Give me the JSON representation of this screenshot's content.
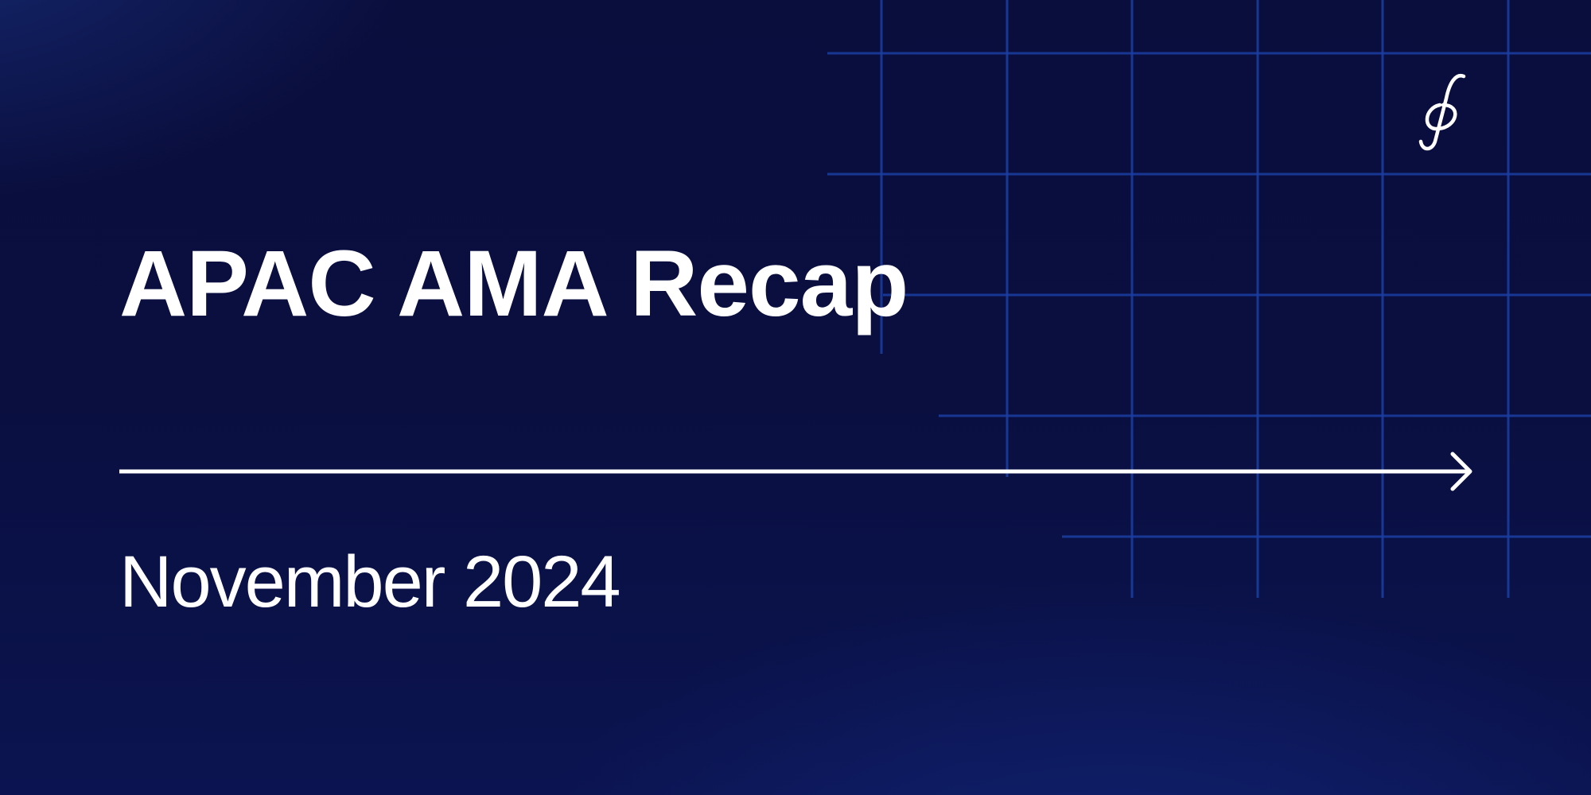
{
  "banner": {
    "title": "APAC AMA Recap",
    "date": "November 2024",
    "logo_icon": "flux-script-f-icon",
    "arrow_icon": "arrow-right-icon"
  },
  "colors": {
    "background_dark": "#0a0e3d",
    "background_glow": "#142d8c",
    "grid_line": "#1b3fa3",
    "text": "#ffffff"
  }
}
